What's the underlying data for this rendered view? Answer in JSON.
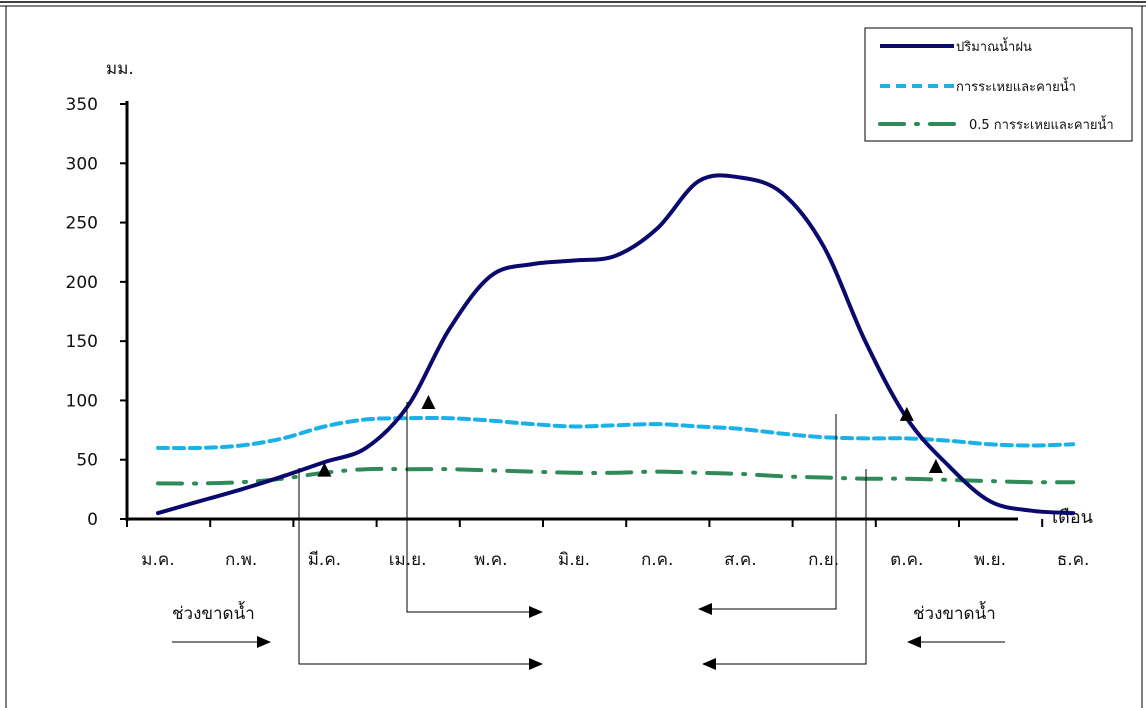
{
  "chart_data": {
    "type": "line",
    "ylabel": "มม.",
    "xlabel": "เดือน",
    "ylim": [
      0,
      350
    ],
    "yticks": [
      0,
      50,
      100,
      150,
      200,
      250,
      300,
      350
    ],
    "categories": [
      "ม.ค.",
      "ก.พ.",
      "มี.ค.",
      "เม.ย.",
      "พ.ค.",
      "มิ.ย.",
      "ก.ค.",
      "ส.ค.",
      "ก.ย.",
      "ต.ค.",
      "พ.ย.",
      "ธ.ค."
    ],
    "legend_position": "top-right",
    "series": [
      {
        "name": "ปริมาณน้ำฝน",
        "color": "#0a0a6e",
        "style": "solid",
        "x": [
          0,
          0.5,
          1,
          1.5,
          2,
          2.5,
          3,
          3.5,
          4,
          4.5,
          5,
          5.5,
          6,
          6.5,
          7,
          7.5,
          8,
          8.5,
          9,
          9.5,
          10,
          10.5,
          11
        ],
        "y": [
          5,
          15,
          25,
          36,
          48,
          60,
          95,
          160,
          205,
          215,
          218,
          222,
          245,
          285,
          288,
          275,
          230,
          150,
          85,
          45,
          15,
          7,
          5
        ]
      },
      {
        "name": "การระเหยและคายน้ำ",
        "color": "#1ab0e8",
        "style": "dashed",
        "x": [
          0,
          0.5,
          1,
          1.5,
          2,
          2.5,
          3,
          3.5,
          4,
          4.5,
          5,
          5.5,
          6,
          6.5,
          7,
          7.5,
          8,
          8.5,
          9,
          9.5,
          10,
          10.5,
          11
        ],
        "y": [
          60,
          60,
          62,
          68,
          78,
          84,
          85,
          85,
          83,
          80,
          78,
          79,
          80,
          78,
          76,
          72,
          69,
          68,
          68,
          66,
          63,
          62,
          63
        ]
      },
      {
        "name": "0.5 การระเหยและคายน้ำ",
        "color": "#2e8b57",
        "style": "dashdot",
        "x": [
          0,
          0.5,
          1,
          1.5,
          2,
          2.5,
          3,
          3.5,
          4,
          4.5,
          5,
          5.5,
          6,
          6.5,
          7,
          7.5,
          8,
          8.5,
          9,
          9.5,
          10,
          10.5,
          11
        ],
        "y": [
          30,
          30,
          31,
          34,
          39,
          42,
          42,
          42,
          41,
          40,
          39,
          39,
          40,
          39,
          38,
          36,
          35,
          34,
          34,
          33,
          32,
          31,
          31
        ]
      }
    ],
    "markers": [
      {
        "x": 2.0,
        "y": 40
      },
      {
        "x": 3.25,
        "y": 97
      },
      {
        "x": 9.0,
        "y": 87
      },
      {
        "x": 9.35,
        "y": 43
      }
    ],
    "annotations": [
      {
        "text": "ช่วงขาดน้ำ",
        "side": "left"
      },
      {
        "text": "ช่วงขาดน้ำ",
        "side": "right"
      }
    ]
  }
}
